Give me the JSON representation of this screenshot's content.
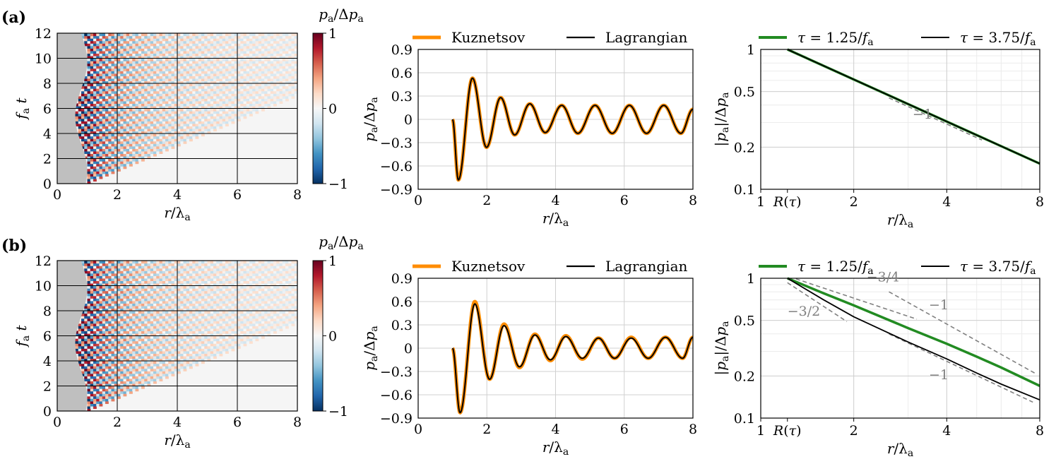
{
  "panel_labels": [
    "(a)",
    "(b)"
  ],
  "colors": {
    "kuznetsov": "#ff8c00",
    "lagrangian": "#000000",
    "tau_short": "#228b22",
    "tau_long": "#000000",
    "slope_guide": "#808080",
    "grey_region": "#bfbfbf",
    "axes_bg": "#f5f5f5",
    "colormap": "RdBu_r"
  },
  "chart_data": [
    {
      "id": "a-heatmap",
      "type": "heatmap",
      "xlabel": "r/λa",
      "ylabel": "fat",
      "xlim": [
        0,
        8
      ],
      "ylim": [
        0,
        12
      ],
      "xticks": [
        "0",
        "2",
        "4",
        "6",
        "8"
      ],
      "yticks": [
        "0",
        "2",
        "4",
        "6",
        "8",
        "10",
        "12"
      ],
      "grid": true,
      "colorbar": {
        "label": "pa/Δpa",
        "range": [
          -1,
          1
        ],
        "ticks": [
          "−1",
          "0",
          "1"
        ]
      },
      "source_radius": {
        "mean": 0.8,
        "amplitude": 0.2,
        "period_fat": 8.75
      }
    },
    {
      "id": "a-signal",
      "type": "line",
      "xlabel": "r/λa",
      "ylabel": "pa/Δpa",
      "xlim": [
        0,
        8
      ],
      "ylim": [
        -0.9,
        0.9
      ],
      "xticks": [
        "0",
        "2",
        "4",
        "6",
        "8"
      ],
      "yticks": [
        "−0.9",
        "−0.6",
        "−0.3",
        "0",
        "0.3",
        "0.6",
        "0.9"
      ],
      "grid": true,
      "legend": "top, outside",
      "series": [
        {
          "name": "Kuznetsov",
          "x": [
            1.0,
            1.17,
            1.58,
            1.99,
            2.4,
            2.81,
            3.25,
            3.7,
            4.18,
            4.65,
            5.15,
            5.65,
            6.15,
            6.65,
            7.15,
            7.65,
            8.0
          ],
          "y": [
            0,
            -0.78,
            0.53,
            -0.36,
            0.28,
            -0.2,
            0.2,
            -0.17,
            0.18,
            -0.18,
            0.18,
            -0.18,
            0.18,
            -0.18,
            0.18,
            -0.18,
            0.13
          ]
        },
        {
          "name": "Lagrangian",
          "x": [
            1.0,
            1.17,
            1.58,
            1.99,
            2.4,
            2.81,
            3.25,
            3.7,
            4.18,
            4.65,
            5.15,
            5.65,
            6.15,
            6.65,
            7.15,
            7.65,
            8.0
          ],
          "y": [
            0,
            -0.78,
            0.53,
            -0.36,
            0.28,
            -0.2,
            0.2,
            -0.17,
            0.18,
            -0.18,
            0.18,
            -0.18,
            0.18,
            -0.18,
            0.18,
            -0.18,
            0.13
          ]
        }
      ]
    },
    {
      "id": "a-decay",
      "type": "line",
      "xlabel": "r/λa",
      "ylabel": "|pa|/Δpa",
      "xscale": "log",
      "yscale": "log",
      "xlim": [
        1,
        8
      ],
      "ylim": [
        0.1,
        1
      ],
      "xticks": [
        "1",
        "R(τ)",
        "2",
        "4",
        "8"
      ],
      "yticks": [
        "0.1",
        "0.2",
        "0.5",
        "1"
      ],
      "grid": true,
      "legend": "top, outside",
      "series": [
        {
          "name": "τ = 1.25/fa",
          "x": [
            1.22,
            8
          ],
          "y": [
            1.0,
            0.1525
          ]
        },
        {
          "name": "τ = 3.75/fa",
          "x": [
            1.22,
            8
          ],
          "y": [
            1.0,
            0.1525
          ]
        }
      ],
      "slope_guides": [
        {
          "label": "−1",
          "x": [
            2.6,
            5.2
          ],
          "y": [
            0.45,
            0.225
          ]
        }
      ]
    },
    {
      "id": "b-heatmap",
      "type": "heatmap",
      "xlabel": "r/λa",
      "ylabel": "fat",
      "xlim": [
        0,
        8
      ],
      "ylim": [
        0,
        12
      ],
      "xticks": [
        "0",
        "2",
        "4",
        "6",
        "8"
      ],
      "yticks": [
        "0",
        "2",
        "4",
        "6",
        "8",
        "10",
        "12"
      ],
      "grid": true,
      "colorbar": {
        "label": "pa/Δpa",
        "range": [
          -1,
          1
        ],
        "ticks": [
          "−1",
          "0",
          "1"
        ]
      },
      "source_radius": {
        "mean": 0.8,
        "amplitude": 0.2,
        "period_fat": 8.75
      }
    },
    {
      "id": "b-signal",
      "type": "line",
      "xlabel": "r/λa",
      "ylabel": "pa/Δpa",
      "xlim": [
        0,
        8
      ],
      "ylim": [
        -0.9,
        0.9
      ],
      "xticks": [
        "0",
        "2",
        "4",
        "6",
        "8"
      ],
      "yticks": [
        "−0.9",
        "−0.6",
        "−0.3",
        "0",
        "0.3",
        "0.6",
        "0.9"
      ],
      "grid": true,
      "legend": "top, outside",
      "series": [
        {
          "name": "Kuznetsov",
          "x": [
            1.0,
            1.22,
            1.65,
            2.08,
            2.5,
            2.95,
            3.4,
            3.85,
            4.3,
            4.78,
            5.25,
            5.72,
            6.2,
            6.7,
            7.2,
            7.7,
            8.0
          ],
          "y": [
            0,
            -0.83,
            0.6,
            -0.4,
            0.31,
            -0.25,
            0.18,
            -0.16,
            0.16,
            -0.14,
            0.13,
            -0.13,
            0.14,
            -0.13,
            0.14,
            -0.13,
            0.14
          ]
        },
        {
          "name": "Lagrangian",
          "x": [
            1.0,
            1.22,
            1.65,
            2.08,
            2.5,
            2.95,
            3.4,
            3.85,
            4.3,
            4.78,
            5.25,
            5.72,
            6.2,
            6.7,
            7.2,
            7.7,
            8.0
          ],
          "y": [
            0,
            -0.83,
            0.57,
            -0.4,
            0.29,
            -0.24,
            0.17,
            -0.15,
            0.15,
            -0.13,
            0.13,
            -0.13,
            0.13,
            -0.13,
            0.14,
            -0.13,
            0.14
          ]
        }
      ]
    },
    {
      "id": "b-decay",
      "type": "line",
      "xlabel": "r/λa",
      "ylabel": "|pa|/Δpa",
      "xscale": "log",
      "yscale": "log",
      "xlim": [
        1,
        8
      ],
      "ylim": [
        0.1,
        1
      ],
      "xticks": [
        "1",
        "R(τ)",
        "2",
        "4",
        "8"
      ],
      "yticks": [
        "0.1",
        "0.2",
        "0.5",
        "1"
      ],
      "grid": true,
      "legend": "top, outside",
      "series": [
        {
          "name": "τ = 1.25/fa",
          "x": [
            1.22,
            1.6,
            2.0,
            3.0,
            4.0,
            5.0,
            6.0,
            8.0
          ],
          "y": [
            1.0,
            0.78,
            0.64,
            0.44,
            0.34,
            0.275,
            0.23,
            0.17
          ]
        },
        {
          "name": "τ = 3.75/fa",
          "x": [
            1.22,
            1.6,
            2.0,
            3.0,
            4.0,
            5.0,
            6.0,
            8.0
          ],
          "y": [
            1.0,
            0.7,
            0.53,
            0.35,
            0.265,
            0.21,
            0.175,
            0.135
          ]
        }
      ],
      "slope_guides": [
        {
          "label": "−3/4",
          "x": [
            1.3,
            3.2
          ],
          "y": [
            0.99,
            0.51
          ]
        },
        {
          "label": "−1",
          "x": [
            2.6,
            7.7
          ],
          "y": [
            0.8,
            0.21
          ]
        },
        {
          "label": "−3/2",
          "x": [
            1.22,
            1.9
          ],
          "y": [
            0.93,
            0.49
          ]
        },
        {
          "label": "−1",
          "x": [
            2.6,
            7.6
          ],
          "y": [
            0.4,
            0.13
          ]
        }
      ]
    }
  ]
}
